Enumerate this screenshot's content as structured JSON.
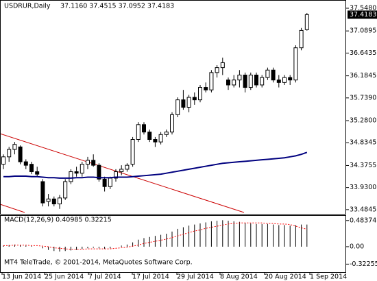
{
  "chart_data": [
    {
      "type": "candlestick",
      "title": "USDRUR,Daily",
      "subtitle": "37.1160 37.4515 37.0952 37.4183",
      "open": [
        34.4,
        34.55,
        34.7,
        34.75,
        34.45,
        34.4,
        34.25,
        34.05,
        33.65,
        33.7,
        33.6,
        33.72,
        34.05,
        34.25,
        34.22,
        34.4,
        34.48,
        34.38,
        34.1,
        33.95,
        34.12,
        34.25,
        34.3,
        34.4,
        34.9,
        35.2,
        35.05,
        34.9,
        34.85,
        35.0,
        35.05,
        35.4,
        35.7,
        35.55,
        35.75,
        35.7,
        35.95,
        35.9,
        36.25,
        36.35,
        36.1,
        36.0,
        36.1,
        36.2,
        35.95,
        36.2,
        36.0,
        36.15,
        36.3,
        36.1,
        36.05,
        36.15,
        36.1,
        36.75,
        37.116
      ],
      "high": [
        34.6,
        34.75,
        34.85,
        34.78,
        34.5,
        34.45,
        34.35,
        34.1,
        33.8,
        33.75,
        33.78,
        34.1,
        34.3,
        34.35,
        34.45,
        34.55,
        34.6,
        34.42,
        34.15,
        34.15,
        34.3,
        34.38,
        34.42,
        34.95,
        35.25,
        35.25,
        35.1,
        34.95,
        35.05,
        35.1,
        35.45,
        35.75,
        35.9,
        35.8,
        35.85,
        36.0,
        36.05,
        36.3,
        36.4,
        36.55,
        36.15,
        36.2,
        36.3,
        36.25,
        36.25,
        36.25,
        36.2,
        36.35,
        36.35,
        36.2,
        36.2,
        36.2,
        36.8,
        37.15,
        37.4515
      ],
      "low": [
        34.3,
        34.45,
        34.6,
        34.4,
        34.3,
        34.2,
        34.15,
        33.55,
        33.55,
        33.55,
        33.5,
        33.68,
        34.0,
        34.15,
        34.15,
        34.3,
        34.35,
        34.05,
        33.85,
        33.9,
        34.05,
        34.18,
        34.25,
        34.35,
        34.85,
        35.0,
        34.85,
        34.75,
        34.8,
        34.95,
        35.0,
        35.35,
        35.5,
        35.45,
        35.6,
        35.65,
        35.85,
        35.85,
        36.15,
        36.2,
        35.9,
        35.95,
        35.95,
        35.85,
        35.9,
        35.95,
        35.95,
        36.1,
        36.05,
        35.95,
        36.0,
        36.0,
        36.05,
        36.7,
        37.0952
      ],
      "close": [
        34.55,
        34.7,
        34.8,
        34.45,
        34.38,
        34.25,
        34.2,
        33.62,
        33.7,
        33.6,
        33.72,
        34.05,
        34.25,
        34.22,
        34.4,
        34.48,
        34.38,
        34.1,
        33.95,
        34.12,
        34.25,
        34.3,
        34.38,
        34.9,
        35.2,
        35.05,
        34.9,
        34.85,
        35.0,
        35.05,
        35.4,
        35.7,
        35.55,
        35.75,
        35.7,
        35.95,
        35.9,
        36.25,
        36.35,
        36.45,
        36.0,
        36.1,
        36.2,
        35.95,
        36.2,
        36.0,
        36.15,
        36.3,
        36.1,
        36.05,
        36.15,
        36.1,
        36.75,
        37.1,
        37.4183
      ],
      "ma": [
        34.15,
        34.15,
        34.16,
        34.16,
        34.16,
        34.15,
        34.15,
        34.14,
        34.13,
        34.13,
        34.12,
        34.12,
        34.12,
        34.13,
        34.13,
        34.14,
        34.14,
        34.13,
        34.13,
        34.13,
        34.14,
        34.14,
        34.14,
        34.15,
        34.16,
        34.17,
        34.18,
        34.19,
        34.2,
        34.22,
        34.24,
        34.26,
        34.28,
        34.3,
        34.32,
        34.34,
        34.36,
        34.38,
        34.4,
        34.42,
        34.43,
        34.44,
        34.45,
        34.46,
        34.47,
        34.48,
        34.49,
        34.5,
        34.51,
        34.52,
        34.53,
        34.55,
        34.57,
        34.6,
        34.64
      ],
      "ma_color": "#00007f",
      "last_price": 37.4183,
      "ylim": [
        33.4,
        37.7
      ],
      "yticks": [
        {
          "value": 37.548,
          "label": "37.5480"
        },
        37.0895,
        36.6435,
        36.1845,
        {
          "value": 35.739,
          "label": "35.7390"
        },
        {
          "value": 35.28,
          "label": "35.2800"
        },
        34.8345,
        34.3755,
        {
          "value": 33.93,
          "label": "33.9300"
        },
        33.4845
      ],
      "x_labels": [
        "13 Jun 2014",
        "25 Jun 2014",
        "7 Jul 2014",
        "17 Jul 2014",
        "29 Jul 2014",
        "8 Aug 2014",
        "20 Aug 2014",
        "1 Sep 2014"
      ],
      "footer": "MT4 TeleTrade, © 2001-2014, MetaQuotes Software Corp."
    },
    {
      "type": "bar",
      "title": "MACD(12,26,9) 0.40985 0.32215",
      "values": [
        0.02,
        0.03,
        0.04,
        0.03,
        0.02,
        0.01,
        0.0,
        -0.03,
        -0.06,
        -0.08,
        -0.09,
        -0.08,
        -0.07,
        -0.06,
        -0.04,
        -0.03,
        -0.02,
        -0.03,
        -0.04,
        -0.03,
        0.0,
        0.02,
        0.04,
        0.08,
        0.13,
        0.16,
        0.18,
        0.2,
        0.22,
        0.24,
        0.28,
        0.33,
        0.36,
        0.39,
        0.41,
        0.43,
        0.45,
        0.47,
        0.48,
        0.49,
        0.48,
        0.47,
        0.46,
        0.44,
        0.43,
        0.42,
        0.42,
        0.42,
        0.41,
        0.4,
        0.4,
        0.39,
        0.4,
        0.41,
        0.40985
      ],
      "signal": [
        0.02,
        0.02,
        0.03,
        0.03,
        0.03,
        0.02,
        0.02,
        0.01,
        0.0,
        -0.02,
        -0.03,
        -0.04,
        -0.05,
        -0.05,
        -0.05,
        -0.04,
        -0.04,
        -0.04,
        -0.04,
        -0.04,
        -0.03,
        -0.02,
        -0.01,
        0.01,
        0.03,
        0.06,
        0.08,
        0.1,
        0.12,
        0.14,
        0.17,
        0.2,
        0.23,
        0.26,
        0.29,
        0.31,
        0.34,
        0.36,
        0.38,
        0.4,
        0.42,
        0.43,
        0.44,
        0.44,
        0.44,
        0.44,
        0.44,
        0.43,
        0.43,
        0.42,
        0.42,
        0.41,
        0.38,
        0.35,
        0.32215
      ],
      "color": "#000000",
      "signal_color": "#ff0000",
      "ylim": [
        -0.47,
        0.57
      ],
      "yticks": [
        0.48374,
        {
          "value": 0,
          "label": "0.00"
        },
        -0.32255
      ]
    }
  ]
}
